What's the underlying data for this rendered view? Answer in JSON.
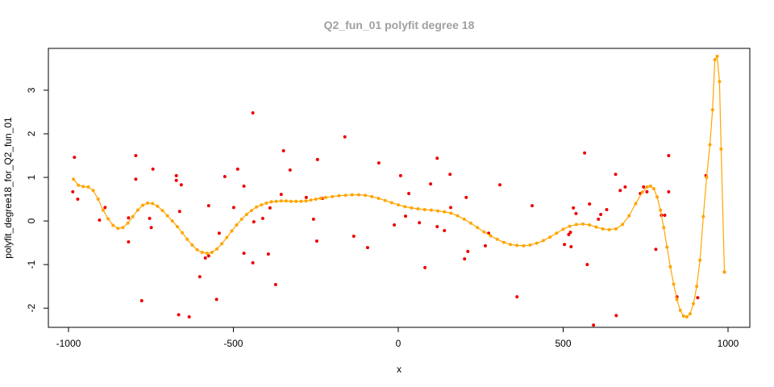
{
  "chart_data": {
    "type": "scatter",
    "title": "Q2_fun_01 polyfit degree 18",
    "x_label": "x",
    "y_label": "polyfit_degree18_for_Q2_fun_01",
    "xlim": [
      -1061,
      1066
    ],
    "ylim": [
      -2.44,
      3.96
    ],
    "xticks": [
      -1000,
      -500,
      0,
      500,
      1000
    ],
    "yticks": [
      -2,
      -1,
      0,
      1,
      2,
      3
    ],
    "series": [
      {
        "type": "scatter",
        "color": "#ee0000",
        "x": [
          -987,
          -982,
          -972,
          -906,
          -889,
          -818,
          -818,
          -796,
          -796,
          -778,
          -754,
          -749,
          -744,
          -673,
          -673,
          -663,
          -658,
          -666,
          -634,
          -602,
          -585,
          -575,
          -575,
          -551,
          -543,
          -526,
          -499,
          -487,
          -468,
          -468,
          -441,
          -441,
          -438,
          -411,
          -394,
          -389,
          -372,
          -355,
          -348,
          -328,
          -279,
          -257,
          -245,
          -247,
          -230,
          -162,
          -135,
          -93,
          -59,
          -12,
          7,
          22,
          32,
          64,
          81,
          98,
          118,
          118,
          140,
          157,
          159,
          201,
          206,
          211,
          264,
          274,
          308,
          360,
          406,
          504,
          517,
          522,
          524,
          531,
          539,
          565,
          573,
          580,
          592,
          607,
          614,
          632,
          659,
          661,
          673,
          688,
          734,
          744,
          754,
          781,
          798,
          808,
          820,
          820,
          845,
          908,
          933,
          989
        ],
        "values": [
          0.67,
          1.46,
          0.5,
          0.02,
          0.31,
          0.07,
          -0.48,
          1.5,
          0.96,
          -1.83,
          0.06,
          -0.15,
          1.19,
          1.04,
          0.93,
          0.22,
          0.83,
          -2.15,
          -2.2,
          -1.28,
          -0.85,
          -0.8,
          0.35,
          -1.8,
          -0.28,
          1.02,
          0.31,
          1.19,
          -0.74,
          0.8,
          -0.96,
          2.48,
          -0.02,
          0.06,
          -0.76,
          0.3,
          -1.46,
          0.61,
          1.61,
          1.17,
          0.54,
          0.04,
          1.41,
          -0.46,
          0.52,
          1.93,
          -0.35,
          -0.61,
          1.33,
          -0.09,
          1.04,
          0.11,
          0.63,
          -0.04,
          -1.07,
          0.85,
          1.44,
          -0.13,
          -0.22,
          1.07,
          0.31,
          -0.87,
          0.54,
          -0.7,
          -0.57,
          -0.28,
          0.83,
          -1.74,
          0.35,
          -0.54,
          -0.31,
          -0.26,
          -0.59,
          0.3,
          0.17,
          1.56,
          -1.0,
          0.39,
          -2.39,
          0.04,
          0.15,
          0.26,
          1.07,
          -2.17,
          0.7,
          0.78,
          0.63,
          0.78,
          0.67,
          -0.65,
          0.13,
          0.13,
          1.5,
          0.67,
          -1.74,
          -1.76,
          1.04,
          -1.17
        ]
      },
      {
        "type": "line",
        "color": "#ffa500",
        "x": [
          -985,
          -970,
          -955,
          -940,
          -925,
          -910,
          -895,
          -880,
          -865,
          -850,
          -835,
          -820,
          -805,
          -790,
          -775,
          -760,
          -745,
          -730,
          -715,
          -700,
          -685,
          -670,
          -655,
          -640,
          -625,
          -610,
          -595,
          -580,
          -565,
          -550,
          -535,
          -520,
          -505,
          -490,
          -475,
          -460,
          -445,
          -430,
          -415,
          -400,
          -385,
          -370,
          -355,
          -340,
          -325,
          -310,
          -295,
          -280,
          -265,
          -250,
          -235,
          -220,
          -200,
          -180,
          -160,
          -140,
          -120,
          -100,
          -80,
          -60,
          -40,
          -20,
          0,
          20,
          40,
          60,
          80,
          100,
          120,
          140,
          160,
          180,
          200,
          220,
          240,
          260,
          280,
          300,
          320,
          340,
          360,
          380,
          400,
          420,
          440,
          460,
          480,
          500,
          520,
          540,
          560,
          580,
          600,
          620,
          640,
          660,
          680,
          700,
          720,
          740,
          755,
          765,
          775,
          785,
          795,
          805,
          815,
          825,
          835,
          845,
          855,
          865,
          875,
          885,
          895,
          905,
          915,
          925,
          935,
          945,
          953,
          960,
          967,
          974,
          979,
          989
        ],
        "values": [
          0.96,
          0.82,
          0.79,
          0.78,
          0.7,
          0.5,
          0.25,
          0.05,
          -0.1,
          -0.17,
          -0.15,
          -0.05,
          0.1,
          0.25,
          0.36,
          0.41,
          0.4,
          0.34,
          0.24,
          0.12,
          0,
          -0.13,
          -0.27,
          -0.42,
          -0.55,
          -0.66,
          -0.72,
          -0.74,
          -0.72,
          -0.64,
          -0.52,
          -0.38,
          -0.23,
          -0.09,
          0.04,
          0.15,
          0.24,
          0.32,
          0.37,
          0.41,
          0.44,
          0.45,
          0.46,
          0.46,
          0.45,
          0.45,
          0.45,
          0.46,
          0.48,
          0.5,
          0.52,
          0.54,
          0.56,
          0.58,
          0.59,
          0.6,
          0.6,
          0.59,
          0.56,
          0.52,
          0.47,
          0.42,
          0.37,
          0.33,
          0.3,
          0.28,
          0.26,
          0.25,
          0.23,
          0.21,
          0.18,
          0.12,
          0.04,
          -0.05,
          -0.15,
          -0.25,
          -0.34,
          -0.42,
          -0.49,
          -0.54,
          -0.56,
          -0.57,
          -0.55,
          -0.51,
          -0.45,
          -0.37,
          -0.28,
          -0.19,
          -0.12,
          -0.08,
          -0.07,
          -0.09,
          -0.14,
          -0.18,
          -0.2,
          -0.18,
          -0.08,
          0.12,
          0.4,
          0.66,
          0.78,
          0.8,
          0.74,
          0.55,
          0.25,
          -0.15,
          -0.6,
          -1.05,
          -1.45,
          -1.8,
          -2.05,
          -2.18,
          -2.2,
          -2.13,
          -1.9,
          -1.5,
          -0.9,
          0.1,
          1.0,
          1.75,
          2.55,
          3.7,
          3.78,
          3.2,
          1.65,
          -1.17
        ]
      }
    ]
  }
}
